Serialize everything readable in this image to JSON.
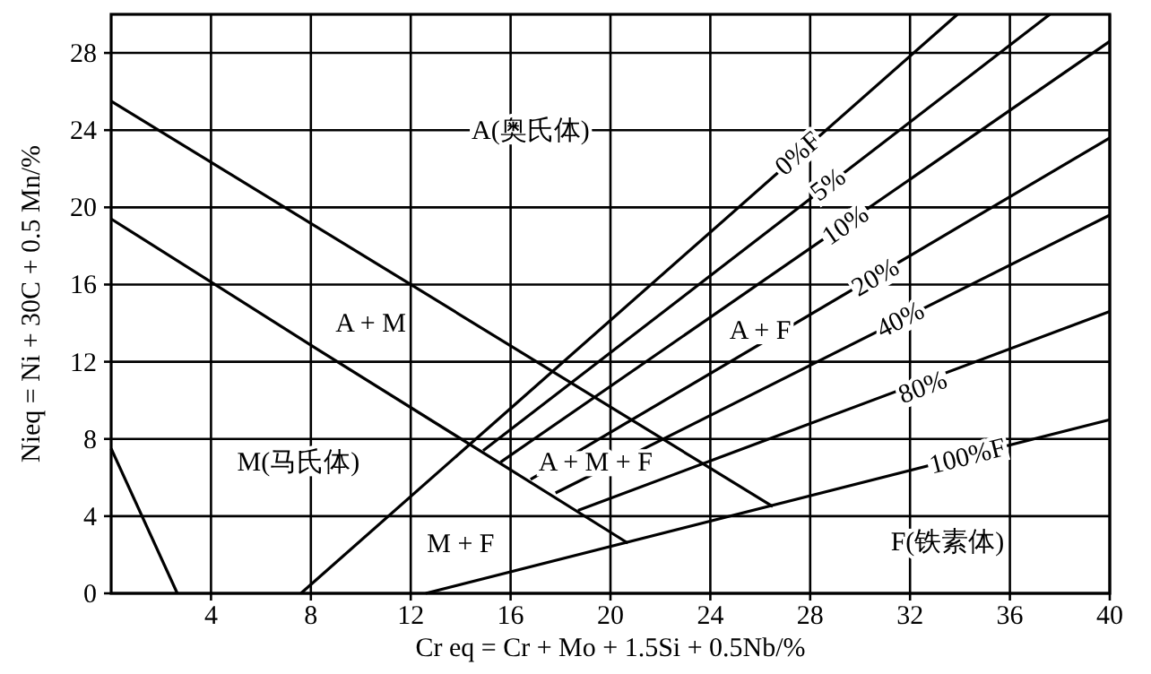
{
  "chart_data": {
    "type": "line",
    "xlabel": "Cr eq = Cr + Mo + 1.5Si + 0.5Nb/%",
    "ylabel": "Nieq = Ni + 30C + 0.5 Mn/%",
    "xlim": [
      0,
      40
    ],
    "ylim": [
      0,
      30
    ],
    "xticks": [
      4,
      8,
      12,
      16,
      20,
      24,
      28,
      32,
      36,
      40
    ],
    "yticks": [
      0,
      4,
      8,
      12,
      16,
      20,
      24,
      28
    ],
    "grid": true,
    "series": [
      {
        "color": "#000000",
        "x": [
          0,
          2.65
        ],
        "values": [
          7.5,
          0
        ]
      },
      {
        "color": "#000000",
        "x": [
          0,
          12,
          26.5
        ],
        "values": [
          25.5,
          16,
          4.5
        ]
      },
      {
        "color": "#000000",
        "x": [
          0,
          8.2,
          20.7
        ],
        "values": [
          19.4,
          12.7,
          2.6
        ]
      },
      {
        "color": "#000000",
        "x": [
          7.6,
          33.9
        ],
        "values": [
          0,
          30
        ]
      },
      {
        "color": "#000000",
        "x": [
          14.9,
          37.6
        ],
        "values": [
          7.4,
          30
        ]
      },
      {
        "color": "#000000",
        "x": [
          15.6,
          40
        ],
        "values": [
          6.8,
          28.6
        ]
      },
      {
        "color": "#000000",
        "x": [
          16.8,
          40
        ],
        "values": [
          5.9,
          23.6
        ]
      },
      {
        "color": "#000000",
        "x": [
          17.8,
          40
        ],
        "values": [
          5.2,
          19.6
        ]
      },
      {
        "color": "#000000",
        "x": [
          18.7,
          40
        ],
        "values": [
          4.3,
          14.6
        ]
      },
      {
        "color": "#000000",
        "x": [
          12.6,
          40
        ],
        "values": [
          0,
          9.0
        ]
      }
    ],
    "annotations": [
      "A(奥氏体)",
      {
        "text": "0%F",
        "x": 27.5,
        "y": 22.8
      },
      {
        "text": "5%",
        "x": 28.7,
        "y": 21.2
      },
      {
        "text": "10%",
        "x": 29.4,
        "y": 19.1
      },
      {
        "text": "20%",
        "x": 30.6,
        "y": 16.4
      },
      {
        "text": "40%",
        "x": 31.6,
        "y": 14.2
      },
      {
        "text": "80%",
        "x": 32.5,
        "y": 10.7
      },
      {
        "text": "100%F",
        "x": 34.3,
        "y": 7.13
      },
      "A + M",
      "A + F",
      "M(马氏体)",
      "A + M + F",
      "M + F",
      "F(铁素体)"
    ]
  }
}
